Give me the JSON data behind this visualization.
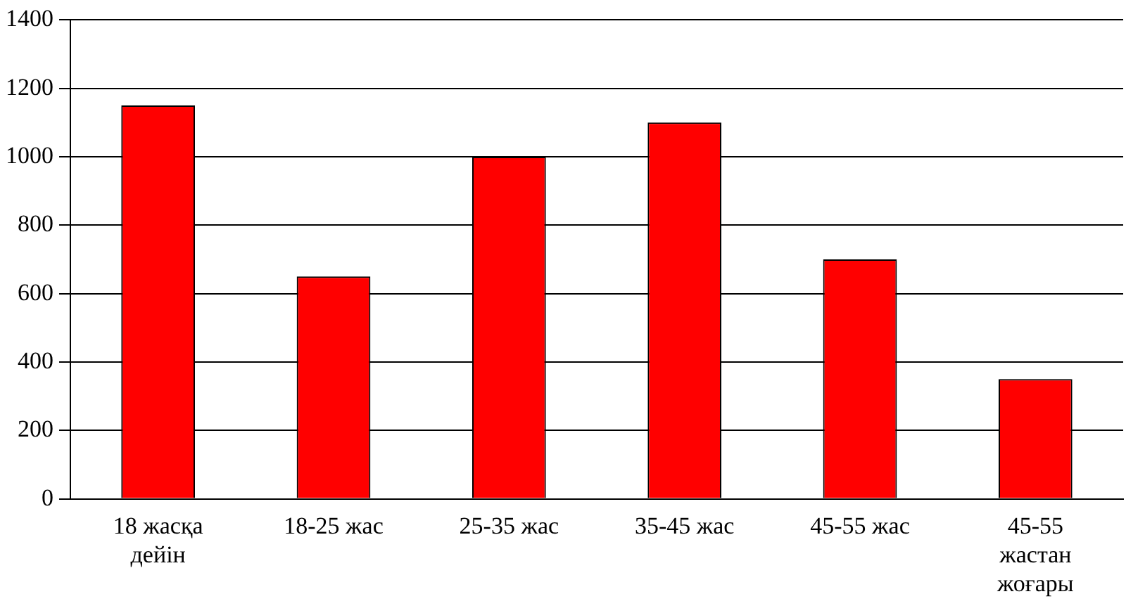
{
  "chart_data": {
    "type": "bar",
    "categories": [
      "18 жасқа дейін",
      "18-25 жас",
      "25-35 жас",
      "35-45 жас",
      "45-55 жас",
      "45-55 жастан жоғары"
    ],
    "values": [
      1150,
      650,
      1000,
      1100,
      700,
      350
    ],
    "color": "#ff0000",
    "ylim": [
      0,
      1400
    ],
    "yticks": [
      0,
      200,
      400,
      600,
      800,
      1000,
      1200,
      1400
    ],
    "grid": "y",
    "legend": false
  }
}
